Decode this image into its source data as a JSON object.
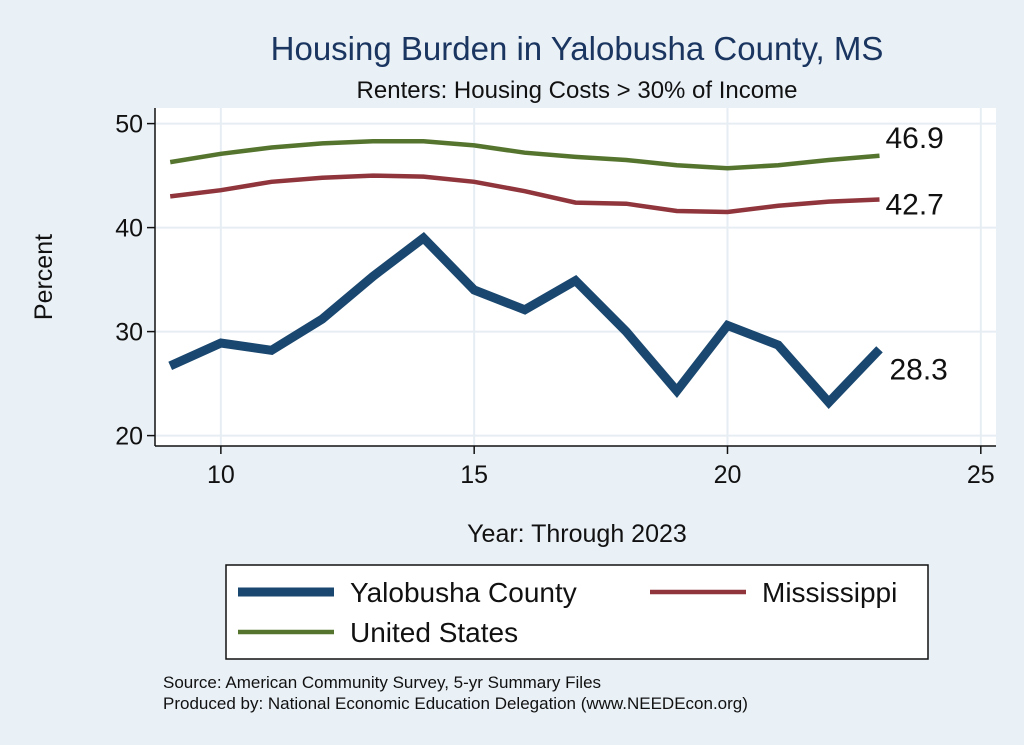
{
  "chart_data": {
    "type": "line",
    "title": "Housing Burden in Yalobusha County, MS",
    "subtitle": "Renters: Housing Costs > 30% of Income",
    "xlabel": "Year: Through 2023",
    "ylabel": "Percent",
    "xlim": [
      8.7,
      25.3
    ],
    "ylim": [
      19,
      51.5
    ],
    "x_ticks": [
      10,
      15,
      20,
      25
    ],
    "y_ticks": [
      20,
      30,
      40,
      50
    ],
    "grid": true,
    "legend_position": "bottom",
    "series": [
      {
        "name": "Yalobusha County",
        "color": "#1a476f",
        "x": [
          9,
          10,
          11,
          12,
          13,
          14,
          15,
          16,
          17,
          18,
          19,
          20,
          21,
          22,
          23
        ],
        "y": [
          26.7,
          28.9,
          28.2,
          31.2,
          35.3,
          39.0,
          34.0,
          32.1,
          34.9,
          30.0,
          24.3,
          30.6,
          28.7,
          23.2,
          28.3
        ],
        "end_label": "28.3"
      },
      {
        "name": "Mississippi",
        "color": "#90353b",
        "x": [
          9,
          10,
          11,
          12,
          13,
          14,
          15,
          16,
          17,
          18,
          19,
          20,
          21,
          22,
          23
        ],
        "y": [
          43.0,
          43.6,
          44.4,
          44.8,
          45.0,
          44.9,
          44.4,
          43.5,
          42.4,
          42.3,
          41.6,
          41.5,
          42.1,
          42.5,
          42.7
        ],
        "end_label": "42.7"
      },
      {
        "name": "United States",
        "color": "#55752f",
        "x": [
          9,
          10,
          11,
          12,
          13,
          14,
          15,
          16,
          17,
          18,
          19,
          20,
          21,
          22,
          23
        ],
        "y": [
          46.3,
          47.1,
          47.7,
          48.1,
          48.3,
          48.3,
          47.9,
          47.2,
          46.8,
          46.5,
          46.0,
          45.7,
          46.0,
          46.5,
          46.9
        ],
        "end_label": "46.9"
      }
    ],
    "notes": [
      "Source: American Community Survey, 5-yr Summary Files",
      "Produced by: National Economic Education Delegation (www.NEEDEcon.org)"
    ]
  }
}
